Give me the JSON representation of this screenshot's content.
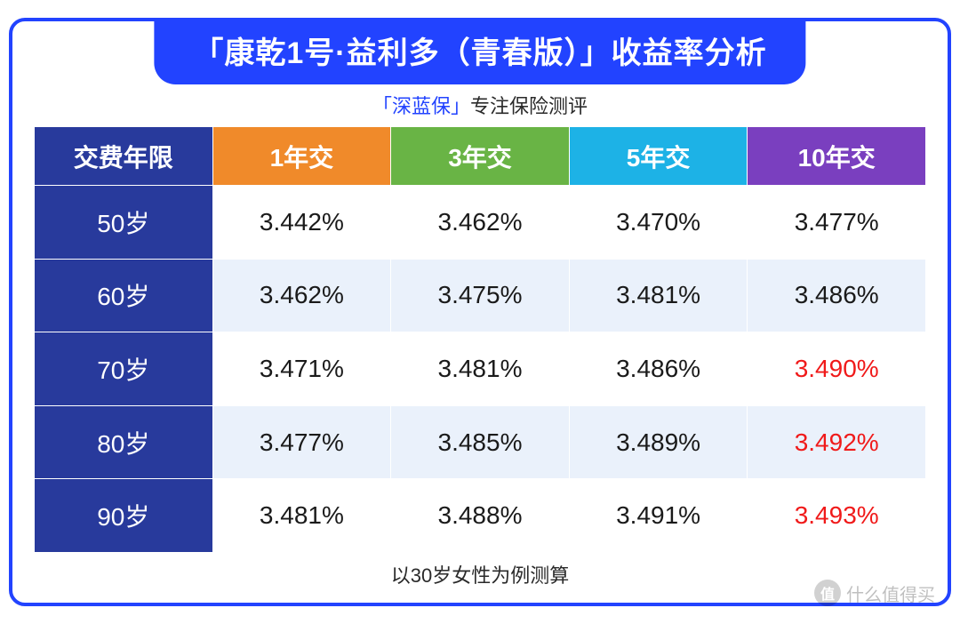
{
  "colors": {
    "border_blue": "#2243ff",
    "pill_bg": "#2243ff",
    "brand_blue": "#2243ff",
    "rowhead_bg": "#283a9c",
    "header_bgs": [
      "#283a9c",
      "#f08a2a",
      "#69b445",
      "#1db2e6",
      "#7a3fbf"
    ],
    "row_bgs_odd": "#ffffff",
    "row_bgs_even": "#eaf1fb",
    "cell_text": "#1a1a1a",
    "highlight_text": "#f01a1a",
    "watermark_text": "rgba(60,130,255,0.15)"
  },
  "title": "「康乾1号·益利多（青春版）」收益率分析",
  "subtitle_brand": "「深蓝保」",
  "subtitle_rest": "专注保险测评",
  "footnote": "以30岁女性为例测算",
  "watermark_center": "深蓝保",
  "watermark_corner": "什么值得买",
  "watermark_corner_badge": "值",
  "table": {
    "type": "table",
    "columns": [
      "交费年限",
      "1年交",
      "3年交",
      "5年交",
      "10年交"
    ],
    "row_labels": [
      "50岁",
      "60岁",
      "70岁",
      "80岁",
      "90岁"
    ],
    "rows": [
      [
        "3.442%",
        "3.462%",
        "3.470%",
        "3.477%"
      ],
      [
        "3.462%",
        "3.475%",
        "3.481%",
        "3.486%"
      ],
      [
        "3.471%",
        "3.481%",
        "3.486%",
        "3.490%"
      ],
      [
        "3.477%",
        "3.485%",
        "3.489%",
        "3.492%"
      ],
      [
        "3.481%",
        "3.488%",
        "3.491%",
        "3.493%"
      ]
    ],
    "highlight": [
      [
        false,
        false,
        false,
        false
      ],
      [
        false,
        false,
        false,
        false
      ],
      [
        false,
        false,
        false,
        true
      ],
      [
        false,
        false,
        false,
        true
      ],
      [
        false,
        false,
        false,
        true
      ]
    ],
    "header_fontsize": 28,
    "cell_fontsize": 28,
    "col_widths_pct": [
      20,
      20,
      20,
      20,
      20
    ]
  }
}
